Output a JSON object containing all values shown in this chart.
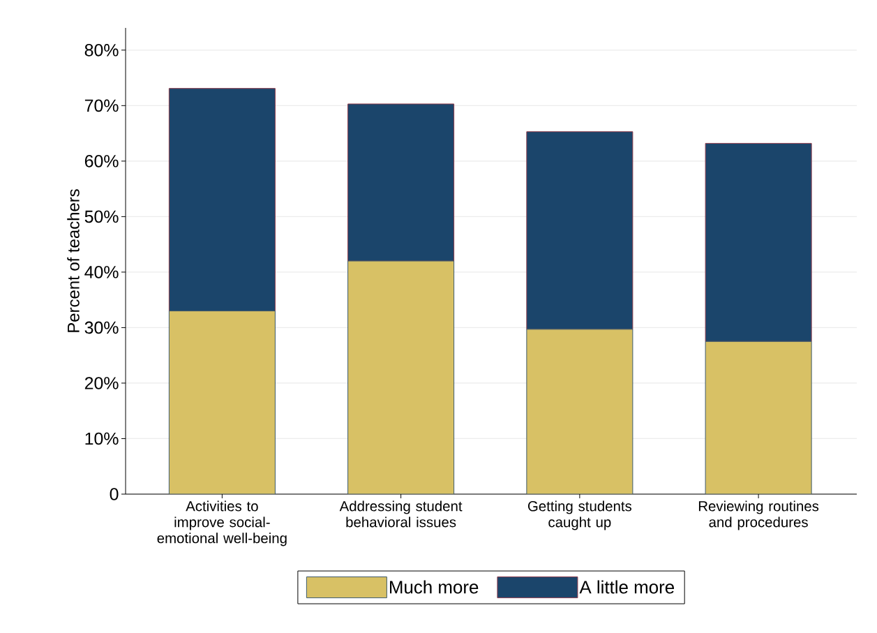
{
  "chart_data": {
    "type": "bar",
    "stacked": true,
    "ylabel": "Percent of teachers",
    "categories": [
      "Activities to improve social-emotional well-being",
      "Addressing student behavioral issues",
      "Getting students caught up",
      "Reviewing routines and procedures"
    ],
    "series": [
      {
        "name": "Much more",
        "color": "#d8c165",
        "values": [
          33.0,
          42.0,
          29.7,
          27.5
        ]
      },
      {
        "name": "A little more",
        "color": "#1b456b",
        "values": [
          40.1,
          28.3,
          35.6,
          35.7
        ]
      }
    ],
    "ylim": [
      0,
      84
    ],
    "yticks": [
      0,
      {
        "value": 10,
        "label": "10%"
      },
      {
        "value": 20,
        "label": "20%"
      },
      {
        "value": 30,
        "label": "30%"
      },
      {
        "value": 40,
        "label": "40%"
      },
      {
        "value": 50,
        "label": "50%"
      },
      {
        "value": 60,
        "label": "60%"
      },
      {
        "value": 70,
        "label": "70%"
      },
      {
        "value": 80,
        "label": "80%"
      }
    ],
    "grid": "y",
    "legend": "bottom"
  }
}
